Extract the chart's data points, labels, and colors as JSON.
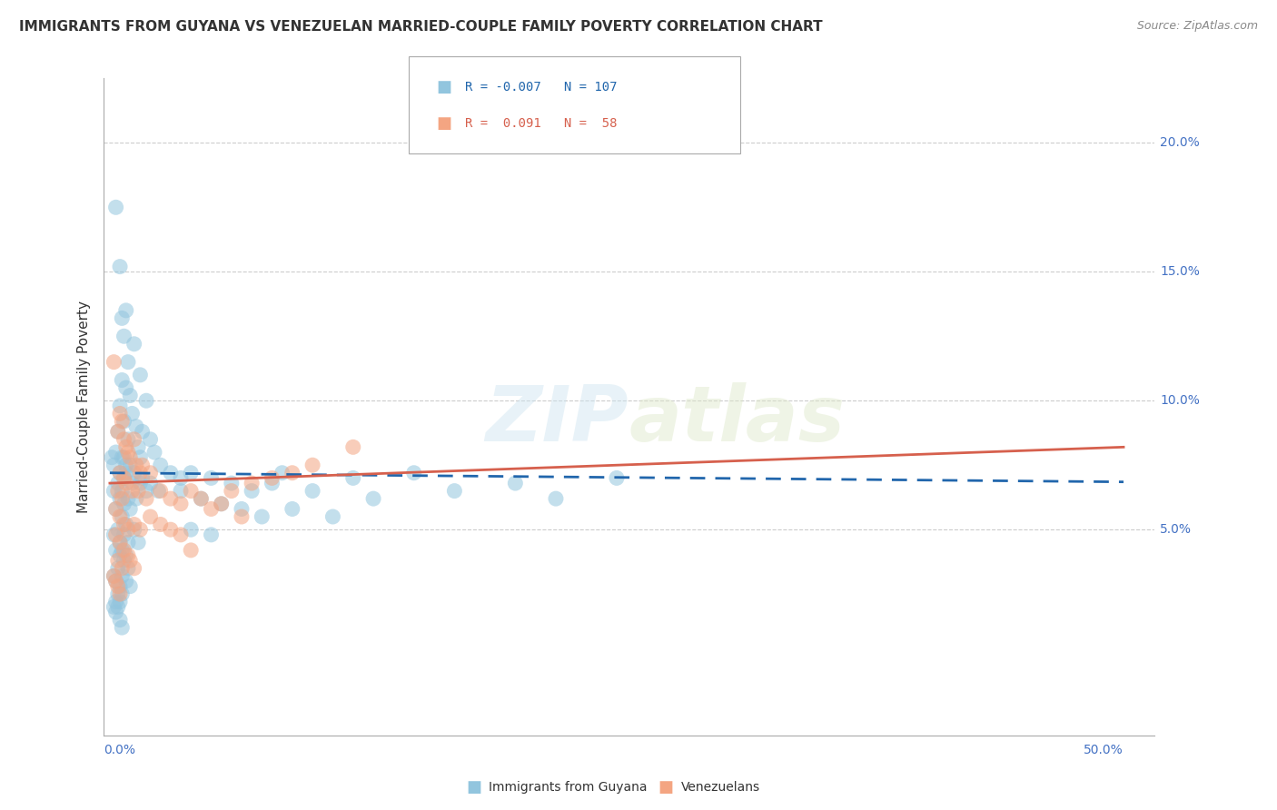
{
  "title": "IMMIGRANTS FROM GUYANA VS VENEZUELAN MARRIED-COUPLE FAMILY POVERTY CORRELATION CHART",
  "source": "Source: ZipAtlas.com",
  "ylabel": "Married-Couple Family Poverty",
  "legend_label1": "Immigrants from Guyana",
  "legend_label2": "Venezuelans",
  "watermark": "ZIPatlas",
  "xlim": [
    0.0,
    50.0
  ],
  "ylim_bottom": -3.0,
  "ylim_top": 22.5,
  "ytick_vals": [
    5.0,
    10.0,
    15.0,
    20.0
  ],
  "ytick_labels": [
    "5.0%",
    "10.0%",
    "15.0%",
    "20.0%"
  ],
  "color_blue": "#92c5de",
  "color_pink": "#f4a582",
  "color_blue_line": "#2166ac",
  "color_pink_line": "#d6604d",
  "background_color": "#ffffff",
  "blue_R": "-0.007",
  "blue_N": "107",
  "pink_R": "0.091",
  "pink_N": "58",
  "blue_scatter": [
    [
      0.3,
      17.5
    ],
    [
      0.5,
      15.2
    ],
    [
      0.6,
      13.2
    ],
    [
      0.8,
      13.5
    ],
    [
      0.7,
      12.5
    ],
    [
      1.2,
      12.2
    ],
    [
      0.9,
      11.5
    ],
    [
      1.5,
      11.0
    ],
    [
      0.6,
      10.8
    ],
    [
      0.8,
      10.5
    ],
    [
      1.0,
      10.2
    ],
    [
      1.8,
      10.0
    ],
    [
      0.5,
      9.8
    ],
    [
      1.1,
      9.5
    ],
    [
      0.7,
      9.2
    ],
    [
      1.3,
      9.0
    ],
    [
      1.6,
      8.8
    ],
    [
      2.0,
      8.5
    ],
    [
      0.4,
      8.8
    ],
    [
      0.9,
      8.5
    ],
    [
      1.4,
      8.2
    ],
    [
      2.2,
      8.0
    ],
    [
      0.3,
      8.0
    ],
    [
      0.6,
      7.8
    ],
    [
      0.8,
      7.5
    ],
    [
      1.0,
      7.5
    ],
    [
      1.2,
      7.2
    ],
    [
      1.6,
      7.0
    ],
    [
      0.5,
      7.2
    ],
    [
      0.7,
      7.0
    ],
    [
      1.1,
      6.8
    ],
    [
      1.5,
      6.8
    ],
    [
      1.8,
      6.5
    ],
    [
      2.4,
      6.5
    ],
    [
      0.4,
      6.8
    ],
    [
      0.6,
      6.5
    ],
    [
      0.9,
      6.2
    ],
    [
      1.3,
      6.2
    ],
    [
      0.2,
      6.5
    ],
    [
      0.5,
      6.2
    ],
    [
      0.7,
      6.0
    ],
    [
      1.0,
      5.8
    ],
    [
      0.3,
      5.8
    ],
    [
      0.6,
      5.5
    ],
    [
      0.8,
      5.2
    ],
    [
      1.2,
      5.0
    ],
    [
      0.4,
      5.0
    ],
    [
      0.7,
      4.8
    ],
    [
      0.9,
      4.5
    ],
    [
      1.4,
      4.5
    ],
    [
      0.2,
      4.8
    ],
    [
      0.5,
      4.5
    ],
    [
      0.6,
      4.2
    ],
    [
      0.8,
      4.0
    ],
    [
      0.3,
      4.2
    ],
    [
      0.5,
      4.0
    ],
    [
      0.7,
      3.8
    ],
    [
      0.9,
      3.5
    ],
    [
      0.4,
      3.5
    ],
    [
      0.6,
      3.2
    ],
    [
      0.8,
      3.0
    ],
    [
      1.0,
      2.8
    ],
    [
      0.2,
      3.2
    ],
    [
      0.3,
      3.0
    ],
    [
      0.5,
      2.8
    ],
    [
      0.6,
      2.5
    ],
    [
      0.4,
      2.5
    ],
    [
      0.5,
      2.2
    ],
    [
      0.3,
      2.2
    ],
    [
      0.4,
      2.0
    ],
    [
      0.2,
      2.0
    ],
    [
      0.3,
      1.8
    ],
    [
      0.5,
      1.5
    ],
    [
      0.6,
      1.2
    ],
    [
      0.7,
      7.8
    ],
    [
      0.8,
      7.2
    ],
    [
      2.5,
      7.5
    ],
    [
      3.0,
      7.2
    ],
    [
      3.5,
      7.0
    ],
    [
      4.0,
      7.2
    ],
    [
      5.0,
      7.0
    ],
    [
      6.0,
      6.8
    ],
    [
      7.0,
      6.5
    ],
    [
      8.0,
      6.8
    ],
    [
      10.0,
      6.5
    ],
    [
      12.0,
      7.0
    ],
    [
      15.0,
      7.2
    ],
    [
      20.0,
      6.8
    ],
    [
      25.0,
      7.0
    ],
    [
      3.5,
      6.5
    ],
    [
      4.5,
      6.2
    ],
    [
      5.5,
      6.0
    ],
    [
      6.5,
      5.8
    ],
    [
      7.5,
      5.5
    ],
    [
      9.0,
      5.8
    ],
    [
      11.0,
      5.5
    ],
    [
      4.0,
      5.0
    ],
    [
      5.0,
      4.8
    ],
    [
      13.0,
      6.2
    ],
    [
      17.0,
      6.5
    ],
    [
      22.0,
      6.2
    ],
    [
      8.5,
      7.2
    ],
    [
      1.5,
      7.8
    ],
    [
      2.0,
      6.8
    ],
    [
      0.1,
      7.8
    ],
    [
      0.2,
      7.5
    ]
  ],
  "pink_scatter": [
    [
      0.2,
      11.5
    ],
    [
      0.5,
      9.5
    ],
    [
      0.6,
      9.2
    ],
    [
      0.4,
      8.8
    ],
    [
      0.7,
      8.5
    ],
    [
      0.8,
      8.2
    ],
    [
      1.2,
      8.5
    ],
    [
      0.9,
      8.0
    ],
    [
      1.0,
      7.8
    ],
    [
      1.3,
      7.5
    ],
    [
      1.5,
      7.2
    ],
    [
      0.5,
      7.2
    ],
    [
      0.7,
      7.0
    ],
    [
      1.6,
      7.5
    ],
    [
      2.0,
      7.2
    ],
    [
      0.8,
      6.8
    ],
    [
      1.1,
      6.5
    ],
    [
      1.4,
      6.5
    ],
    [
      1.8,
      6.2
    ],
    [
      0.4,
      6.5
    ],
    [
      0.6,
      6.2
    ],
    [
      2.5,
      6.5
    ],
    [
      3.0,
      6.2
    ],
    [
      3.5,
      6.0
    ],
    [
      4.0,
      6.5
    ],
    [
      4.5,
      6.2
    ],
    [
      5.0,
      5.8
    ],
    [
      5.5,
      6.0
    ],
    [
      6.0,
      6.5
    ],
    [
      7.0,
      6.8
    ],
    [
      8.0,
      7.0
    ],
    [
      9.0,
      7.2
    ],
    [
      10.0,
      7.5
    ],
    [
      12.0,
      8.2
    ],
    [
      0.3,
      5.8
    ],
    [
      0.5,
      5.5
    ],
    [
      0.7,
      5.2
    ],
    [
      0.9,
      5.0
    ],
    [
      1.2,
      5.2
    ],
    [
      1.5,
      5.0
    ],
    [
      2.0,
      5.5
    ],
    [
      2.5,
      5.2
    ],
    [
      3.0,
      5.0
    ],
    [
      3.5,
      4.8
    ],
    [
      0.3,
      4.8
    ],
    [
      0.5,
      4.5
    ],
    [
      0.7,
      4.2
    ],
    [
      0.9,
      4.0
    ],
    [
      1.0,
      3.8
    ],
    [
      1.2,
      3.5
    ],
    [
      0.4,
      3.8
    ],
    [
      0.6,
      3.5
    ],
    [
      0.2,
      3.2
    ],
    [
      0.3,
      3.0
    ],
    [
      0.4,
      2.8
    ],
    [
      0.5,
      2.5
    ],
    [
      4.0,
      4.2
    ],
    [
      6.5,
      5.5
    ]
  ]
}
